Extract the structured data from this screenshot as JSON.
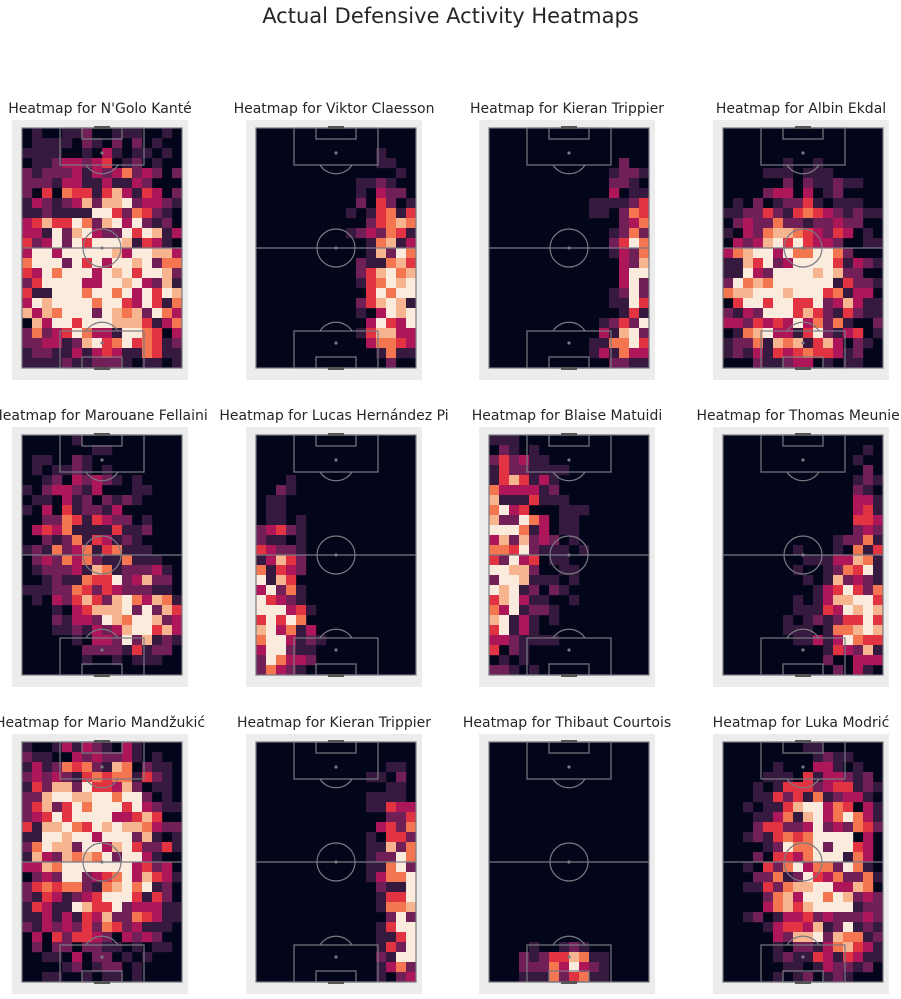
{
  "title": "Actual Defensive Activity Heatmaps",
  "colors": {
    "background": "#03051a",
    "line": "#7a7a82",
    "frame": "#ececec",
    "scale": [
      "#03051a",
      "#35193e",
      "#701f57",
      "#ad1759",
      "#e13342",
      "#f37651",
      "#f6b48f",
      "#faebdd"
    ]
  },
  "chart_data": [
    {
      "type": "heatmap",
      "title": "Heatmap for N'Golo Kanté",
      "spots": [
        [
          0.5,
          0.35,
          0.5,
          0.4,
          0.6
        ],
        [
          0.25,
          0.7,
          0.35,
          0.25,
          0.8
        ],
        [
          0.75,
          0.75,
          0.35,
          0.25,
          0.7
        ],
        [
          0.55,
          0.55,
          0.3,
          0.2,
          0.5
        ]
      ]
    },
    {
      "type": "heatmap",
      "title": "Heatmap for Viktor Claesson",
      "spots": [
        [
          0.92,
          0.6,
          0.18,
          0.2,
          1.0
        ],
        [
          0.8,
          0.35,
          0.2,
          0.25,
          0.4
        ],
        [
          0.85,
          0.85,
          0.2,
          0.2,
          0.6
        ]
      ]
    },
    {
      "type": "heatmap",
      "title": "Heatmap for Kieran Trippier",
      "spots": [
        [
          0.95,
          0.65,
          0.12,
          0.25,
          1.0
        ],
        [
          0.85,
          0.3,
          0.2,
          0.25,
          0.35
        ],
        [
          0.85,
          0.9,
          0.2,
          0.1,
          0.6
        ]
      ]
    },
    {
      "type": "heatmap",
      "title": "Heatmap for Albin Ekdal",
      "spots": [
        [
          0.35,
          0.68,
          0.35,
          0.22,
          1.0
        ],
        [
          0.5,
          0.45,
          0.4,
          0.3,
          0.5
        ],
        [
          0.6,
          0.8,
          0.4,
          0.2,
          0.5
        ]
      ]
    },
    {
      "type": "heatmap",
      "title": "Heatmap for Marouane Fellaini",
      "spots": [
        [
          0.75,
          0.75,
          0.25,
          0.15,
          1.0
        ],
        [
          0.35,
          0.4,
          0.35,
          0.35,
          0.5
        ],
        [
          0.55,
          0.6,
          0.35,
          0.3,
          0.3
        ]
      ]
    },
    {
      "type": "heatmap",
      "title": "Heatmap for Lucas Hernández Pi",
      "spots": [
        [
          0.08,
          0.7,
          0.15,
          0.25,
          1.0
        ],
        [
          0.18,
          0.85,
          0.18,
          0.15,
          0.7
        ],
        [
          0.2,
          0.35,
          0.15,
          0.3,
          0.25
        ]
      ]
    },
    {
      "type": "heatmap",
      "title": "Heatmap for Blaise Matuidi",
      "spots": [
        [
          0.08,
          0.55,
          0.14,
          0.35,
          1.0
        ],
        [
          0.3,
          0.5,
          0.35,
          0.45,
          0.3
        ],
        [
          0.15,
          0.25,
          0.2,
          0.2,
          0.3
        ]
      ]
    },
    {
      "type": "heatmap",
      "title": "Heatmap for Thomas Meunier",
      "spots": [
        [
          0.85,
          0.75,
          0.2,
          0.2,
          1.0
        ],
        [
          0.9,
          0.4,
          0.12,
          0.3,
          0.5
        ],
        [
          0.6,
          0.7,
          0.3,
          0.3,
          0.25
        ]
      ]
    },
    {
      "type": "heatmap",
      "title": "Heatmap for Mario Mandžukić",
      "spots": [
        [
          0.5,
          0.35,
          0.35,
          0.3,
          1.0
        ],
        [
          0.3,
          0.5,
          0.45,
          0.5,
          0.5
        ],
        [
          0.7,
          0.6,
          0.3,
          0.3,
          0.3
        ]
      ]
    },
    {
      "type": "heatmap",
      "title": "Heatmap for Kieran Trippier",
      "spots": [
        [
          0.95,
          0.65,
          0.12,
          0.25,
          1.0
        ],
        [
          0.85,
          0.35,
          0.2,
          0.3,
          0.4
        ],
        [
          0.9,
          0.9,
          0.15,
          0.12,
          0.5
        ]
      ]
    },
    {
      "type": "heatmap",
      "title": "Heatmap for Thibaut Courtois",
      "spots": [
        [
          0.5,
          0.94,
          0.18,
          0.08,
          1.0
        ],
        [
          0.3,
          0.93,
          0.1,
          0.06,
          0.5
        ]
      ]
    },
    {
      "type": "heatmap",
      "title": "Heatmap for Luka Modrić",
      "spots": [
        [
          0.6,
          0.55,
          0.35,
          0.3,
          1.0
        ],
        [
          0.6,
          0.25,
          0.35,
          0.2,
          0.4
        ],
        [
          0.7,
          0.8,
          0.3,
          0.2,
          0.4
        ]
      ]
    }
  ]
}
